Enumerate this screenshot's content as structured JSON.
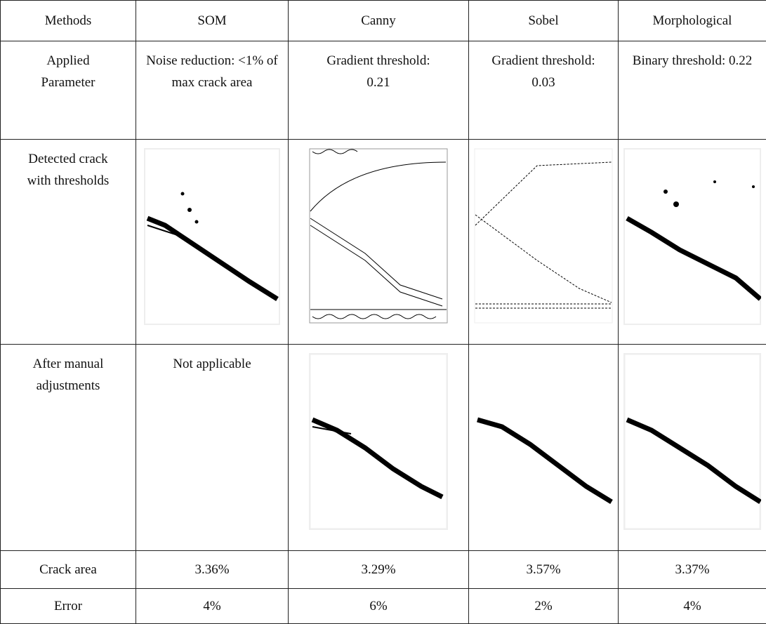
{
  "table": {
    "header": [
      "Methods",
      "SOM",
      "Canny",
      "Sobel",
      "Morphological"
    ],
    "rows": [
      {
        "label": "Applied Parameter",
        "cells": [
          "Noise reduction: <1% of max crack area",
          "Gradient threshold: 0.21",
          "Gradient threshold: 0.03",
          "Binary threshold: 0.22"
        ]
      },
      {
        "label": "Detected crack with thresholds"
      },
      {
        "label": "After manual adjustments",
        "note": "Not applicable"
      },
      {
        "label": "Crack area",
        "cells": [
          "3.36%",
          "3.29%",
          "3.57%",
          "3.37%"
        ]
      },
      {
        "label": "Error",
        "cells": [
          "4%",
          "6%",
          "2%",
          "4%"
        ]
      }
    ]
  }
}
